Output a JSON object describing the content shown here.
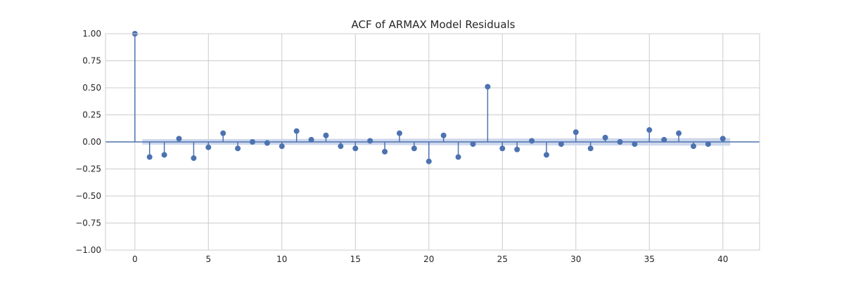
{
  "chart_data": {
    "type": "stem",
    "title": "ACF of ARMAX Model Residuals",
    "xlabel": "",
    "ylabel": "",
    "xlim": [
      -2,
      42.5
    ],
    "ylim": [
      -1.0,
      1.0
    ],
    "x_ticks": [
      0,
      5,
      10,
      15,
      20,
      25,
      30,
      35,
      40
    ],
    "y_ticks": [
      1.0,
      0.75,
      0.5,
      0.25,
      0.0,
      -0.25,
      -0.5,
      -0.75,
      -1.0
    ],
    "y_tick_labels": [
      "1.00",
      "0.75",
      "0.50",
      "0.25",
      "0.00",
      "−0.25",
      "−0.50",
      "−0.75",
      "−1.00"
    ],
    "grid": true,
    "lags": [
      0,
      1,
      2,
      3,
      4,
      5,
      6,
      7,
      8,
      9,
      10,
      11,
      12,
      13,
      14,
      15,
      16,
      17,
      18,
      19,
      20,
      21,
      22,
      23,
      24,
      25,
      26,
      27,
      28,
      29,
      30,
      31,
      32,
      33,
      34,
      35,
      36,
      37,
      38,
      39,
      40
    ],
    "values": [
      1.0,
      -0.14,
      -0.12,
      0.03,
      -0.15,
      -0.05,
      0.08,
      -0.06,
      0.0,
      -0.01,
      -0.04,
      0.1,
      0.02,
      0.06,
      -0.04,
      -0.06,
      0.01,
      -0.09,
      0.08,
      -0.06,
      -0.18,
      0.06,
      -0.14,
      -0.02,
      0.51,
      -0.06,
      -0.07,
      0.01,
      -0.12,
      -0.02,
      0.09,
      -0.06,
      0.04,
      0.0,
      -0.02,
      0.11,
      0.02,
      0.08,
      -0.04,
      -0.02,
      0.03
    ],
    "confidence_band": {
      "lags": [
        1,
        40
      ],
      "upper": [
        0.025,
        0.035
      ],
      "lower": [
        -0.025,
        -0.035
      ]
    },
    "colors": {
      "stem": "#4c72b0",
      "band": "#c8d3ea",
      "grid": "#cccccc"
    }
  }
}
